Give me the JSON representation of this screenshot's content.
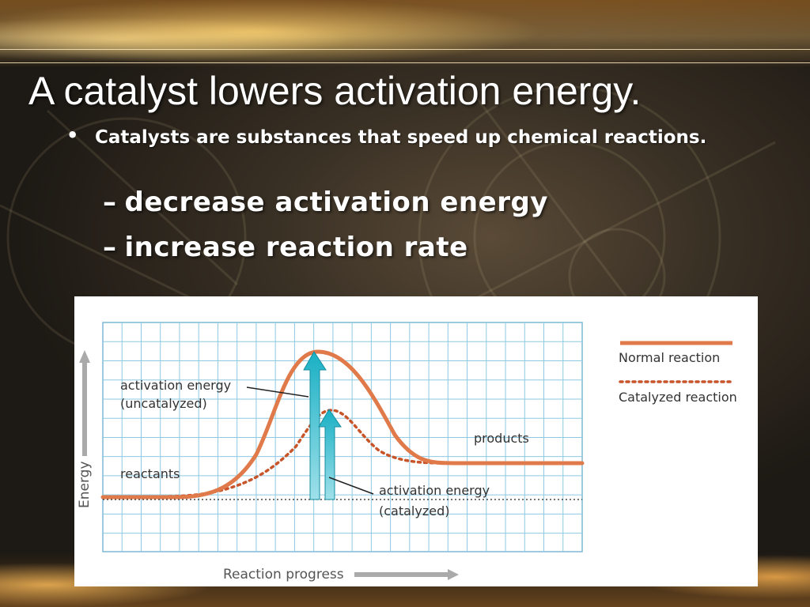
{
  "slide": {
    "title": "A catalyst lowers activation energy.",
    "bullet": {
      "marker": "•",
      "text": "Catalysts are substances that speed up chemical reactions."
    },
    "sub_bullets": [
      {
        "dash": "–",
        "text": "decrease activation energy"
      },
      {
        "dash": "–",
        "text": "increase reaction rate"
      }
    ]
  },
  "diagram": {
    "labels": {
      "activation_uncat_line1": "activation energy",
      "activation_uncat_line2": "(uncatalyzed)",
      "activation_cat_line1": "activation energy",
      "activation_cat_line2": "(catalyzed)",
      "reactants": "reactants",
      "products": "products",
      "y_axis": "Energy",
      "x_axis": "Reaction progress"
    },
    "legend": {
      "normal": "Normal reaction",
      "catalyzed": "Catalyzed reaction"
    },
    "colors": {
      "normal_curve": "#e07a4a",
      "catalyzed_curve": "#c8552a",
      "arrow": "#22aabd",
      "grid": "#8ec9e2"
    }
  }
}
